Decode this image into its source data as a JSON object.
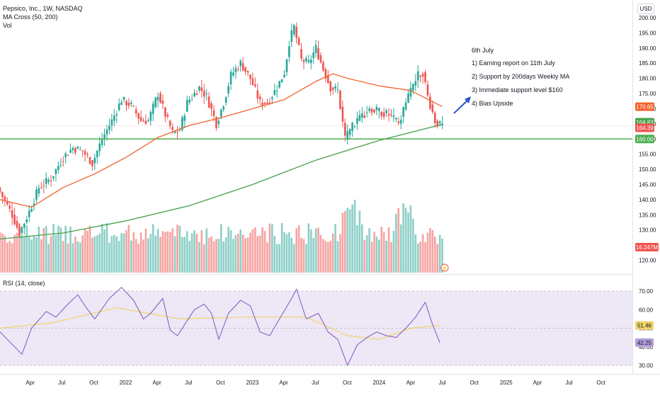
{
  "header": {
    "title": "Pepsico, Inc., 1W, NASDAQ",
    "indicator_ma": "MA Cross (50, 200)",
    "indicator_vol": "Vol",
    "currency": "USD"
  },
  "annotation": {
    "heading": "6th July",
    "lines": [
      "1) Earning report on 11th July",
      "2) Support by 200days Weekly MA",
      "3) Immediate support level $160",
      "4) Bias Upside"
    ]
  },
  "rsi_panel": {
    "title": "RSI (14, close)"
  },
  "colors": {
    "up": "#26a69a",
    "down": "#ef5350",
    "vol_up": "#8ccfc7",
    "vol_down": "#f5a3a1",
    "ma50": "#f1642d",
    "ma200": "#43a047",
    "support_line": "#4caf50",
    "rsi": "#7e57c2",
    "rsi_ma": "#f2d46b",
    "rsi_band": "#ede7f6",
    "arrow": "#2a55c7"
  },
  "chart_data": [
    {
      "type": "line",
      "title": "Pepsico, Inc., 1W, NASDAQ",
      "x_tick_labels": [
        "Apr",
        "Jul",
        "Oct",
        "2022",
        "Apr",
        "Jul",
        "Oct",
        "2023",
        "Apr",
        "Jul",
        "Oct",
        "2024",
        "Apr",
        "Jul",
        "Oct",
        "2025",
        "Apr",
        "Jul",
        "Oct"
      ],
      "y_tick_labels": [
        "200.00",
        "195.00",
        "190.00",
        "185.00",
        "180.00",
        "175.00",
        "170.00",
        "165.00",
        "160.00",
        "155.00",
        "150.00",
        "145.00",
        "140.00",
        "135.00",
        "130.00",
        "125.00",
        "120.00"
      ],
      "ylim": [
        117.6,
        203.3
      ],
      "price_path": [
        [
          "2021-01-04",
          144
        ],
        [
          "2021-02-15",
          135
        ],
        [
          "2021-03-08",
          129
        ],
        [
          "2021-04-05",
          136
        ],
        [
          "2021-05-03",
          144
        ],
        [
          "2021-06-07",
          147
        ],
        [
          "2021-07-12",
          154
        ],
        [
          "2021-08-09",
          157
        ],
        [
          "2021-09-06",
          156
        ],
        [
          "2021-10-04",
          152
        ],
        [
          "2021-11-01",
          160
        ],
        [
          "2021-11-29",
          166
        ],
        [
          "2021-12-27",
          173
        ],
        [
          "2022-01-24",
          171
        ],
        [
          "2022-02-21",
          166
        ],
        [
          "2022-03-14",
          166
        ],
        [
          "2022-04-11",
          175
        ],
        [
          "2022-05-02",
          168
        ],
        [
          "2022-05-23",
          162
        ],
        [
          "2022-06-13",
          163
        ],
        [
          "2022-07-04",
          172
        ],
        [
          "2022-08-08",
          177
        ],
        [
          "2022-08-29",
          174
        ],
        [
          "2022-09-26",
          165
        ],
        [
          "2022-10-17",
          172
        ],
        [
          "2022-11-07",
          181
        ],
        [
          "2022-12-05",
          185
        ],
        [
          "2023-01-02",
          180
        ],
        [
          "2023-01-30",
          172
        ],
        [
          "2023-02-20",
          172
        ],
        [
          "2023-03-20",
          177
        ],
        [
          "2023-04-10",
          182
        ],
        [
          "2023-04-24",
          192
        ],
        [
          "2023-05-08",
          197
        ],
        [
          "2023-05-29",
          186
        ],
        [
          "2023-06-19",
          185
        ],
        [
          "2023-07-10",
          190
        ],
        [
          "2023-07-31",
          183
        ],
        [
          "2023-08-21",
          177
        ],
        [
          "2023-09-11",
          176
        ],
        [
          "2023-10-02",
          160
        ],
        [
          "2023-10-23",
          164
        ],
        [
          "2023-11-13",
          167
        ],
        [
          "2023-12-11",
          170
        ],
        [
          "2024-01-08",
          169
        ],
        [
          "2024-02-05",
          168
        ],
        [
          "2024-03-04",
          165
        ],
        [
          "2024-03-25",
          172
        ],
        [
          "2024-04-08",
          176
        ],
        [
          "2024-04-29",
          181
        ],
        [
          "2024-05-13",
          182
        ],
        [
          "2024-05-27",
          174
        ],
        [
          "2024-06-17",
          166
        ],
        [
          "2024-07-01",
          164.39
        ]
      ],
      "ma50_path": [
        [
          "2021-01-04",
          140
        ],
        [
          "2021-04-05",
          137.5
        ],
        [
          "2021-07-05",
          144
        ],
        [
          "2021-10-04",
          148.5
        ],
        [
          "2022-01-03",
          154
        ],
        [
          "2022-04-04",
          160.5
        ],
        [
          "2022-07-04",
          164.5
        ],
        [
          "2022-10-03",
          167
        ],
        [
          "2023-01-02",
          170
        ],
        [
          "2023-04-03",
          173
        ],
        [
          "2023-07-03",
          179
        ],
        [
          "2023-08-21",
          181.5
        ],
        [
          "2023-10-02",
          180
        ],
        [
          "2024-01-01",
          177.5
        ],
        [
          "2024-04-01",
          176
        ],
        [
          "2024-07-01",
          170.65
        ]
      ],
      "ma200_path": [
        [
          "2021-01-04",
          127
        ],
        [
          "2021-07-05",
          129
        ],
        [
          "2022-01-03",
          133
        ],
        [
          "2022-07-04",
          138
        ],
        [
          "2023-01-02",
          145
        ],
        [
          "2023-07-03",
          153
        ],
        [
          "2024-01-01",
          159.5
        ],
        [
          "2024-07-01",
          164.83
        ]
      ],
      "support_level": 160.0,
      "last_price": 164.39,
      "price_labels": [
        "170.65",
        "164.83",
        "164.39",
        "160.00"
      ]
    },
    {
      "type": "bar",
      "title": "Vol",
      "last_value_label": "16.247M",
      "pattern": "weekly volume bars, highest around Oct 2023 and Mar 2024"
    },
    {
      "type": "line",
      "title": "RSI (14, close)",
      "y_tick_labels": [
        "70.00",
        "60.00",
        "50.00",
        "40.00",
        "30.00"
      ],
      "ylim": [
        27,
        74
      ],
      "band": [
        30,
        70
      ],
      "rsi_path": [
        [
          "2021-01-04",
          48
        ],
        [
          "2021-02-15",
          40
        ],
        [
          "2021-03-08",
          36
        ],
        [
          "2021-04-05",
          50
        ],
        [
          "2021-05-17",
          59
        ],
        [
          "2021-06-14",
          56
        ],
        [
          "2021-07-19",
          63
        ],
        [
          "2021-08-16",
          68
        ],
        [
          "2021-09-06",
          62
        ],
        [
          "2021-10-04",
          55
        ],
        [
          "2021-11-15",
          66
        ],
        [
          "2021-12-20",
          72
        ],
        [
          "2022-01-24",
          65
        ],
        [
          "2022-02-21",
          55
        ],
        [
          "2022-03-14",
          58
        ],
        [
          "2022-04-18",
          66
        ],
        [
          "2022-05-09",
          49
        ],
        [
          "2022-05-30",
          46
        ],
        [
          "2022-06-20",
          52
        ],
        [
          "2022-07-18",
          60
        ],
        [
          "2022-08-15",
          63
        ],
        [
          "2022-09-05",
          58
        ],
        [
          "2022-09-26",
          44
        ],
        [
          "2022-10-24",
          58
        ],
        [
          "2022-11-28",
          65
        ],
        [
          "2022-12-26",
          62
        ],
        [
          "2023-01-23",
          48
        ],
        [
          "2023-02-20",
          46
        ],
        [
          "2023-03-20",
          55
        ],
        [
          "2023-04-24",
          66
        ],
        [
          "2023-05-08",
          71
        ],
        [
          "2023-06-05",
          55
        ],
        [
          "2023-07-10",
          58
        ],
        [
          "2023-08-07",
          48
        ],
        [
          "2023-09-04",
          44
        ],
        [
          "2023-10-02",
          30
        ],
        [
          "2023-10-30",
          41
        ],
        [
          "2023-11-27",
          45
        ],
        [
          "2023-12-25",
          48
        ],
        [
          "2024-01-22",
          46
        ],
        [
          "2024-02-19",
          45
        ],
        [
          "2024-03-18",
          50
        ],
        [
          "2024-04-15",
          56
        ],
        [
          "2024-05-13",
          64
        ],
        [
          "2024-06-03",
          52
        ],
        [
          "2024-06-24",
          42.25
        ]
      ],
      "rsi_ma_path": [
        [
          "2021-01-04",
          50
        ],
        [
          "2021-06-07",
          53
        ],
        [
          "2021-12-06",
          61
        ],
        [
          "2022-06-06",
          55
        ],
        [
          "2022-12-05",
          56
        ],
        [
          "2023-06-05",
          56
        ],
        [
          "2023-10-02",
          46
        ],
        [
          "2024-01-01",
          44
        ],
        [
          "2024-04-01",
          50
        ],
        [
          "2024-06-24",
          51.46
        ]
      ],
      "value_labels": [
        "51.46",
        "42.25"
      ]
    }
  ]
}
